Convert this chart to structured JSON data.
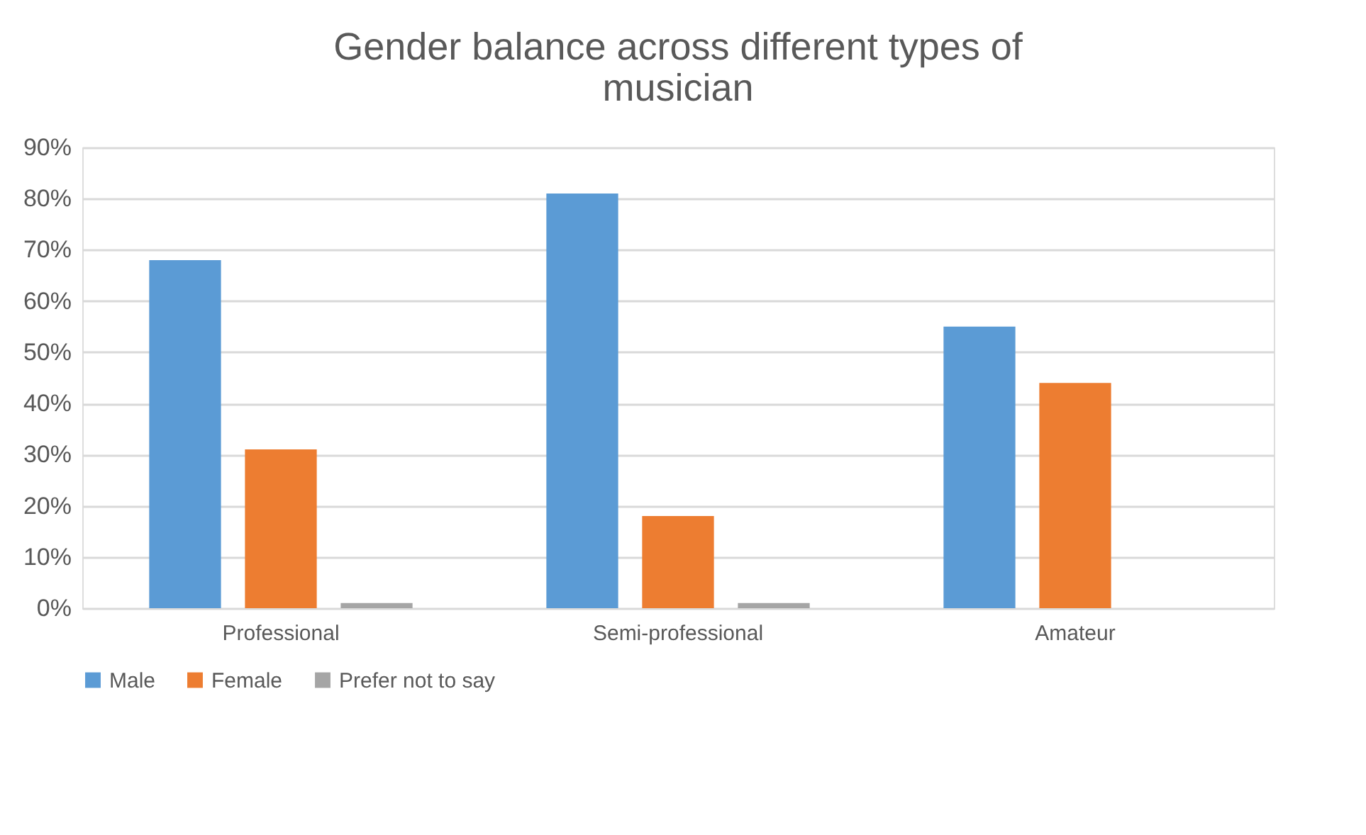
{
  "chart_data": {
    "type": "bar",
    "title": "Gender balance across different types of musician",
    "categories": [
      "Professional",
      "Semi-professional",
      "Amateur"
    ],
    "series": [
      {
        "name": "Male",
        "color": "#5b9bd5",
        "values": [
          68,
          81,
          55
        ]
      },
      {
        "name": "Female",
        "color": "#ed7d31",
        "values": [
          31,
          18,
          44
        ]
      },
      {
        "name": "Prefer not to say",
        "color": "#a5a5a5",
        "values": [
          1,
          1,
          0
        ]
      }
    ],
    "ylim": [
      0,
      90
    ],
    "yticks": [
      {
        "value": 0,
        "label": "0%"
      },
      {
        "value": 10,
        "label": "10%"
      },
      {
        "value": 20,
        "label": "20%"
      },
      {
        "value": 30,
        "label": "30%"
      },
      {
        "value": 40,
        "label": "40%"
      },
      {
        "value": 50,
        "label": "50%"
      },
      {
        "value": 60,
        "label": "60%"
      },
      {
        "value": 70,
        "label": "70%"
      },
      {
        "value": 80,
        "label": "80%"
      },
      {
        "value": 90,
        "label": "90%"
      }
    ],
    "grid": "y",
    "legend": "bottom"
  }
}
